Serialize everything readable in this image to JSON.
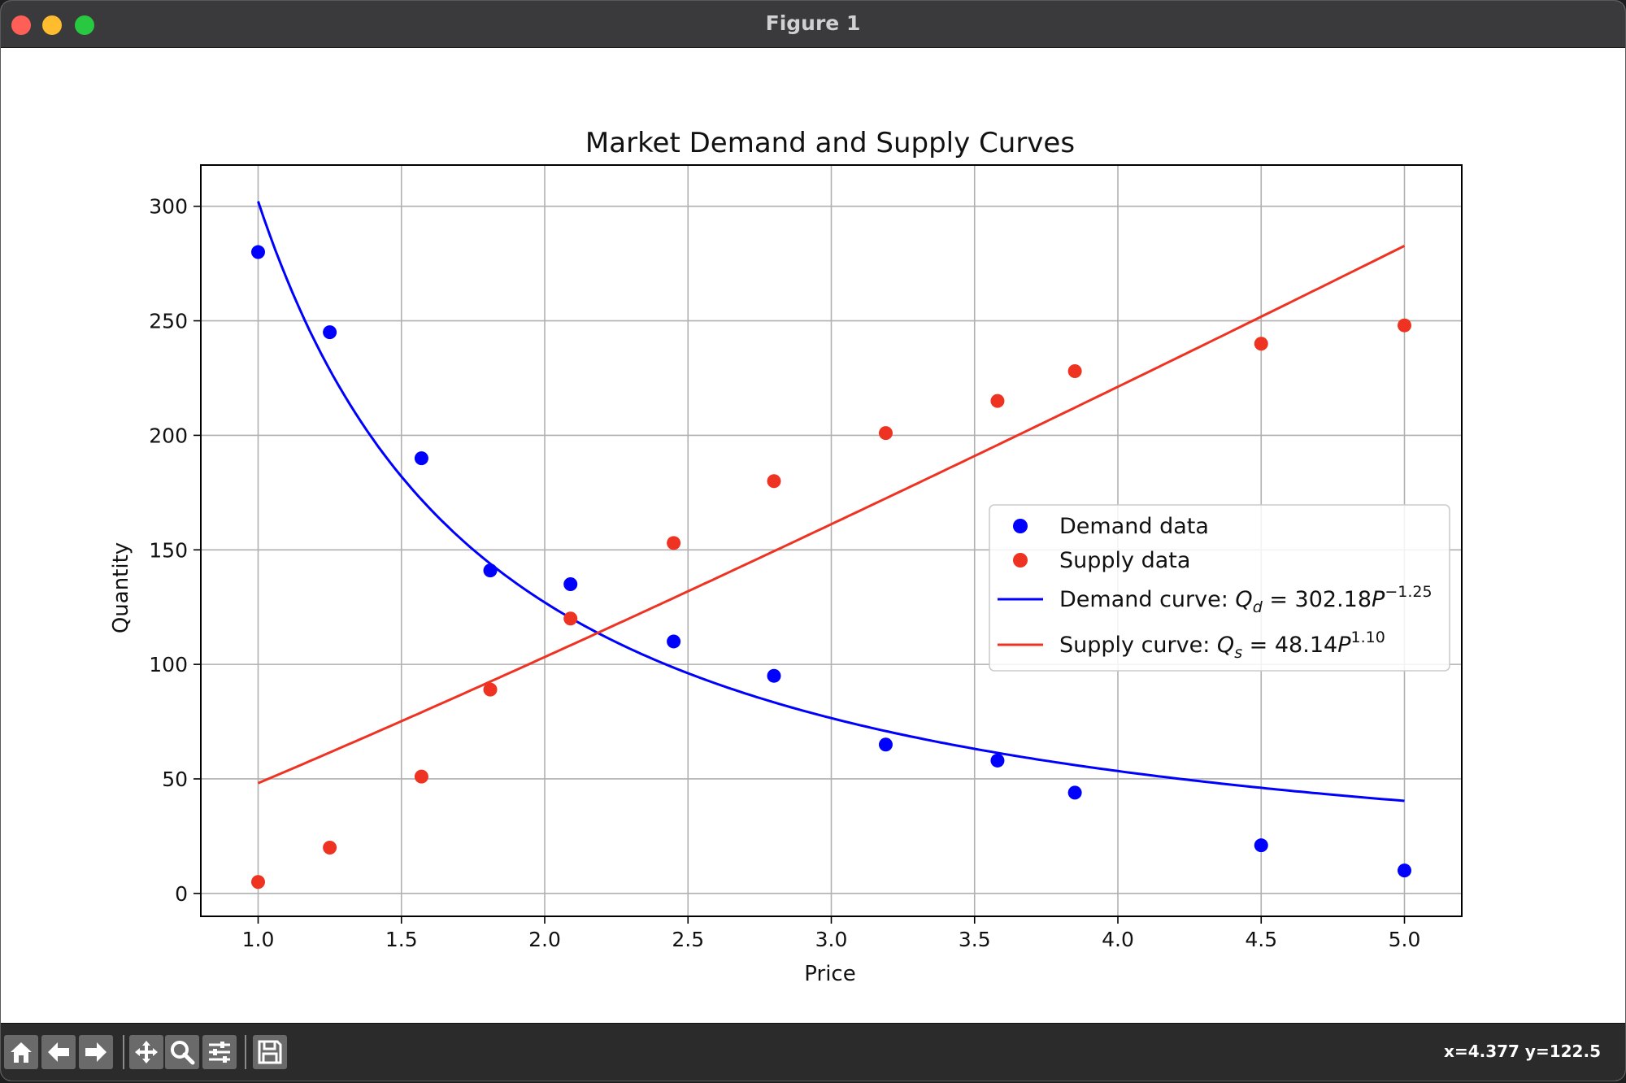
{
  "window": {
    "title": "Figure 1"
  },
  "toolbar": {
    "buttons": [
      {
        "name": "home-icon"
      },
      {
        "name": "back-icon"
      },
      {
        "name": "forward-icon"
      },
      {
        "name": "pan-icon"
      },
      {
        "name": "zoom-icon"
      },
      {
        "name": "configure-subplots-icon"
      },
      {
        "name": "save-icon"
      }
    ],
    "coordinates": "x=4.377 y=122.5"
  },
  "chart_data": {
    "type": "scatter",
    "title": "Market Demand and Supply Curves",
    "xlabel": "Price",
    "ylabel": "Quantity",
    "xlim": [
      0.8,
      5.2
    ],
    "ylim": [
      -10,
      318
    ],
    "xticks": [
      1.0,
      1.5,
      2.0,
      2.5,
      3.0,
      3.5,
      4.0,
      4.5,
      5.0
    ],
    "xtick_labels": [
      "1.0",
      "1.5",
      "2.0",
      "2.5",
      "3.0",
      "3.5",
      "4.0",
      "4.5",
      "5.0"
    ],
    "yticks": [
      0,
      50,
      100,
      150,
      200,
      250,
      300
    ],
    "ytick_labels": [
      "0",
      "50",
      "100",
      "150",
      "200",
      "250",
      "300"
    ],
    "grid": true,
    "legend_position": "center-right",
    "series": [
      {
        "name": "Demand data",
        "kind": "scatter",
        "color": "#0000ff",
        "x": [
          1.0,
          1.25,
          1.57,
          1.81,
          2.09,
          2.45,
          2.8,
          3.19,
          3.58,
          3.85,
          4.5,
          5.0
        ],
        "y": [
          280,
          245,
          190,
          141,
          135,
          110,
          95,
          65,
          58,
          44,
          21,
          10
        ]
      },
      {
        "name": "Supply data",
        "kind": "scatter",
        "color": "#ee3322",
        "x": [
          1.0,
          1.25,
          1.57,
          1.81,
          2.09,
          2.45,
          2.8,
          3.19,
          3.58,
          3.85,
          4.5,
          5.0
        ],
        "y": [
          5,
          20,
          51,
          89,
          120,
          153,
          180,
          201,
          215,
          228,
          240,
          248
        ]
      },
      {
        "name": "Demand curve: Q_d = 302.18P^-1.25",
        "kind": "line",
        "color": "#0000ff",
        "coef": 302.18,
        "exponent": -1.25,
        "x_range": [
          1.0,
          5.0
        ]
      },
      {
        "name": "Supply curve: Q_s = 48.14P^1.10",
        "kind": "line",
        "color": "#ee3322",
        "coef": 48.14,
        "exponent": 1.1,
        "x_range": [
          1.0,
          5.0
        ]
      }
    ],
    "legend": [
      {
        "type": "dot",
        "color": "#0000ff",
        "label": "Demand data"
      },
      {
        "type": "dot",
        "color": "#ee3322",
        "label": "Supply data"
      },
      {
        "type": "line",
        "color": "#0000ff",
        "prefix": "Demand curve: ",
        "var": "Q",
        "sub": "d",
        "eq": " = 302.18",
        "base": "P",
        "sup": "−1.25"
      },
      {
        "type": "line",
        "color": "#ee3322",
        "prefix": "Supply curve: ",
        "var": "Q",
        "sub": "s",
        "eq": " = 48.14",
        "base": "P",
        "sup": "1.10"
      }
    ]
  }
}
